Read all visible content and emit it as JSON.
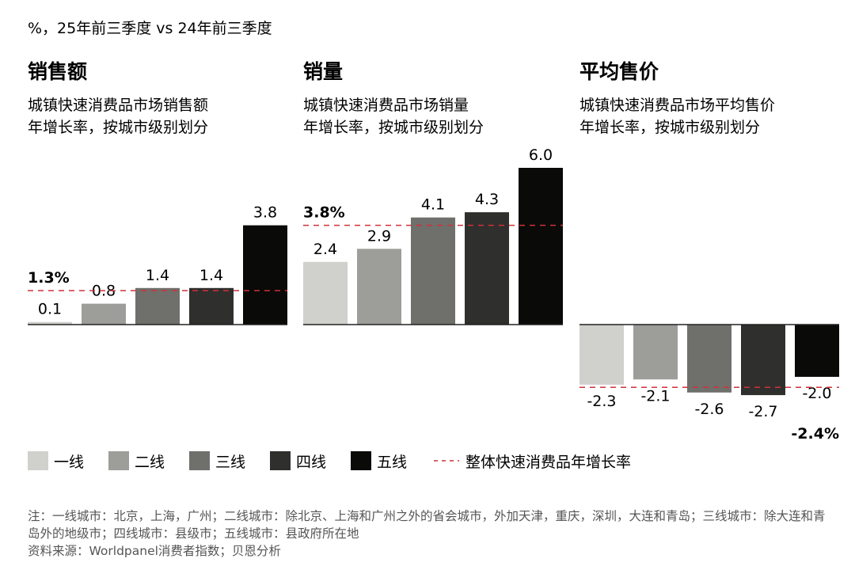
{
  "header": "%，25年前三季度 vs 24年前三季度",
  "colors": {
    "一线": "#d0d0cc",
    "二线": "#9d9d99",
    "三线": "#6f6f6b",
    "四线": "#2f2f2d",
    "五线": "#0a0a08",
    "overall": "#d0313a"
  },
  "chart_data": [
    {
      "type": "bar",
      "title": "销售额",
      "subtitle": [
        "城镇快速消费品市场销售额",
        "年增长率，按城市级别划分"
      ],
      "categories": [
        "一线",
        "二线",
        "三线",
        "四线",
        "五线"
      ],
      "values": [
        0.1,
        0.8,
        1.4,
        1.4,
        3.8
      ],
      "overall": 1.3,
      "overall_label": "1.3%"
    },
    {
      "type": "bar",
      "title": "销量",
      "subtitle": [
        "城镇快速消费品市场销量",
        "年增长率，按城市级别划分"
      ],
      "categories": [
        "一线",
        "二线",
        "三线",
        "四线",
        "五线"
      ],
      "values": [
        2.4,
        2.9,
        4.1,
        4.3,
        6.0
      ],
      "overall": 3.8,
      "overall_label": "3.8%"
    },
    {
      "type": "bar",
      "title": "平均售价",
      "subtitle": [
        "城镇快速消费品市场平均售价",
        "年增长率，按城市级别划分"
      ],
      "categories": [
        "一线",
        "二线",
        "三线",
        "四线",
        "五线"
      ],
      "values": [
        -2.3,
        -2.1,
        -2.6,
        -2.7,
        -2.0
      ],
      "overall": -2.4,
      "overall_label": "-2.4%"
    }
  ],
  "legend": {
    "items": [
      "一线",
      "二线",
      "三线",
      "四线",
      "五线"
    ],
    "overall": "整体快速消费品年增长率"
  },
  "notes": [
    "注：一线城市：北京，上海，广州；二线城市：除北京、上海和广州之外的省会城市，外加天津，重庆，深圳，大连和青岛；三线城市：除大连和青岛外的地级市；四线城市：县级市；五线城市：县政府所在地",
    "资料来源：Worldpanel消费者指数；贝恩分析"
  ]
}
